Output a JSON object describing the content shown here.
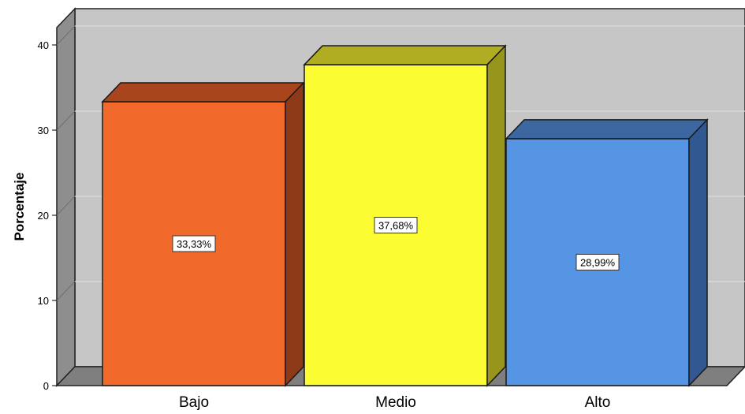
{
  "chart_data": {
    "type": "bar",
    "style": "3d",
    "ylabel": "Porcentaje",
    "xlabel": "",
    "ylim": [
      0,
      40
    ],
    "yticks": [
      0,
      10,
      20,
      30,
      40
    ],
    "grid": true,
    "categories": [
      "Bajo",
      "Medio",
      "Alto"
    ],
    "values": [
      33.33,
      37.68,
      28.99
    ],
    "data_labels": [
      "33,33%",
      "37,68%",
      "28,99%"
    ],
    "colors": {
      "bars": [
        "#f26a2b",
        "#fcfc32",
        "#5595e4"
      ],
      "bar_tops": [
        "#a8451d",
        "#b1ad23",
        "#3c67a0"
      ],
      "bar_sides": [
        "#8e3a18",
        "#98951d",
        "#325891"
      ],
      "wall": "#c6c6c6",
      "side_wall": "#8e8e8e",
      "floor": "#7f7f7f",
      "grid": "#dddddd"
    }
  }
}
